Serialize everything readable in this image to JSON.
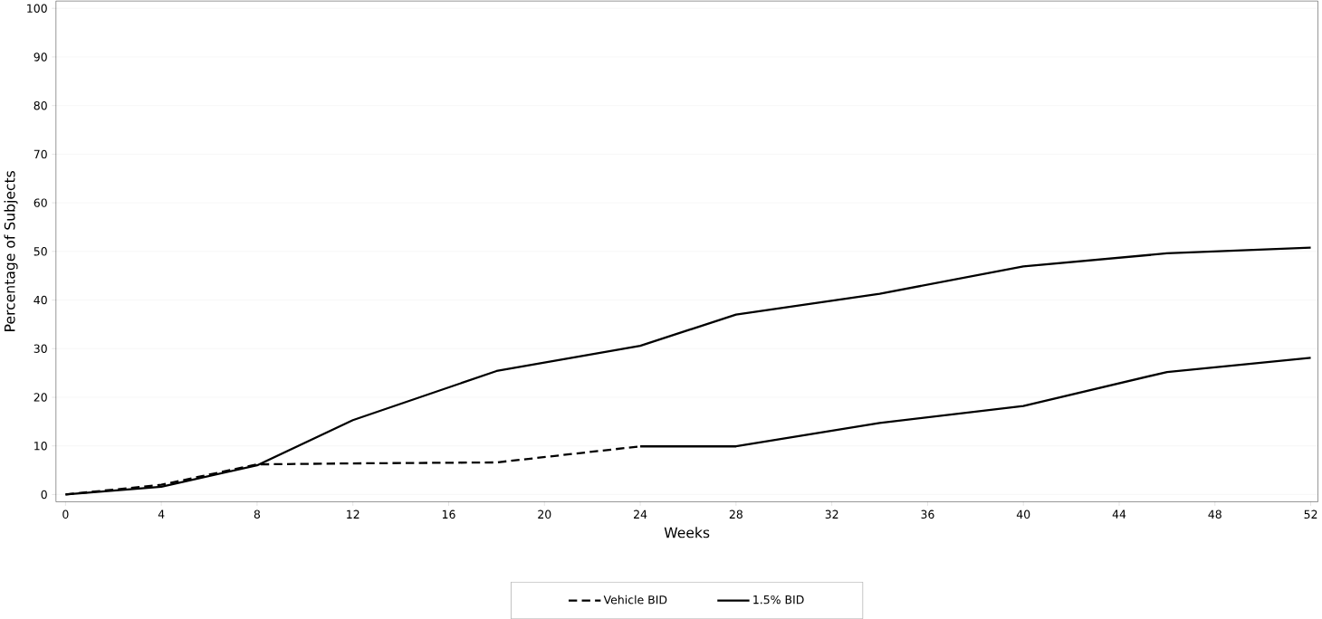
{
  "chart_data": {
    "type": "line",
    "xlabel": "Weeks",
    "ylabel": "Percentage of Subjects",
    "xlim": [
      -0.4,
      52.3
    ],
    "ylim": [
      -1.5,
      101.5
    ],
    "xticks": [
      0,
      4,
      8,
      12,
      16,
      20,
      24,
      28,
      32,
      36,
      40,
      44,
      48,
      52
    ],
    "yticks": [
      0,
      10,
      20,
      30,
      40,
      50,
      60,
      70,
      80,
      90,
      100
    ],
    "grid": "y",
    "legend": "bottom",
    "series": [
      {
        "name": "Vehicle BID",
        "color": "#000000",
        "line_style": "dashed",
        "x": [
          0,
          4,
          8,
          12,
          18,
          24
        ],
        "values": [
          0,
          2,
          6.2,
          6.4,
          6.6,
          9.9
        ]
      },
      {
        "name": "1.5% BID",
        "color": "#000000",
        "line_style": "solid",
        "x": [
          0,
          4,
          8,
          12,
          18,
          24,
          28,
          34,
          40,
          46,
          52
        ],
        "values": [
          0,
          1.6,
          6,
          15.3,
          25.4,
          30.6,
          37,
          41.3,
          46.9,
          49.6,
          50.8
        ]
      },
      {
        "color": "#000000",
        "line_style": "solid",
        "x": [
          24,
          28,
          34,
          40,
          46,
          52
        ],
        "values": [
          9.9,
          9.9,
          14.7,
          18.2,
          25.2,
          28.1
        ]
      }
    ]
  }
}
